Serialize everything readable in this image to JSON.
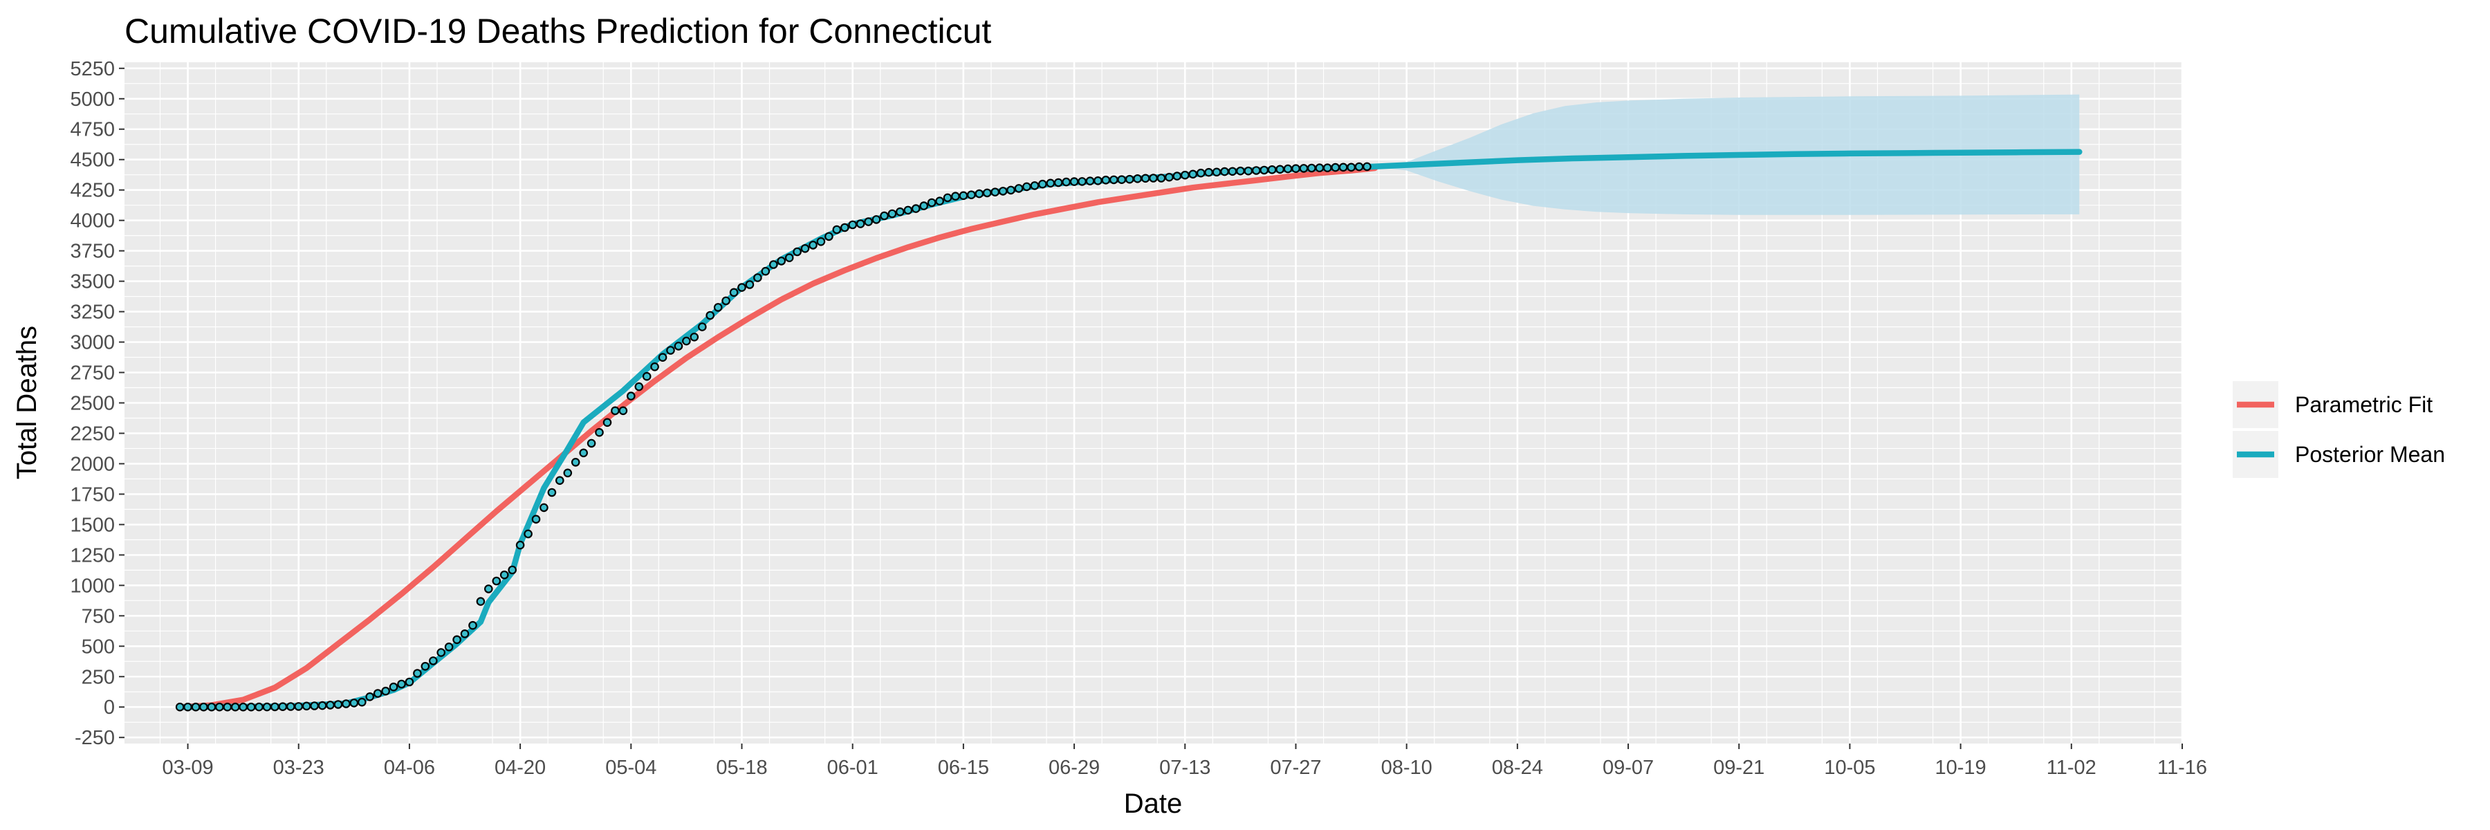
{
  "chart_data": {
    "type": "line",
    "title": "Cumulative COVID-19 Deaths Prediction for Connecticut",
    "xlabel": "Date",
    "ylabel": "Total Deaths",
    "x_axis": {
      "type": "date",
      "year": 2020,
      "range": [
        "2020-03-01",
        "2020-11-16"
      ],
      "ticks": [
        "03-09",
        "03-23",
        "04-06",
        "04-20",
        "05-04",
        "05-18",
        "06-01",
        "06-15",
        "06-29",
        "07-13",
        "07-27",
        "08-10",
        "08-24",
        "09-07",
        "09-21",
        "10-05",
        "10-19",
        "11-02",
        "11-16"
      ]
    },
    "y_axis": {
      "range": [
        -300,
        5300
      ],
      "ticks": [
        -250,
        0,
        250,
        500,
        750,
        1000,
        1250,
        1500,
        1750,
        2000,
        2250,
        2500,
        2750,
        3000,
        3250,
        3500,
        3750,
        4000,
        4250,
        4500,
        4750,
        5000,
        5250
      ]
    },
    "grid": true,
    "legend": {
      "placement": "right",
      "entries": [
        "Parametric Fit",
        "Posterior Mean"
      ]
    },
    "colors": {
      "parametric_fit": "#F2635F",
      "posterior_mean": "#1AABBE",
      "band": "#BCDDEB",
      "points_fill": "#3BBDCB",
      "points_stroke": "#000000",
      "panel": "#EBEBEB",
      "grid": "#FFFFFF"
    },
    "series": [
      {
        "name": "Parametric Fit",
        "points": [
          [
            "2020-03-08",
            0
          ],
          [
            "2020-03-12",
            15
          ],
          [
            "2020-03-16",
            60
          ],
          [
            "2020-03-20",
            160
          ],
          [
            "2020-03-24",
            320
          ],
          [
            "2020-03-28",
            520
          ],
          [
            "2020-04-01",
            720
          ],
          [
            "2020-04-05",
            930
          ],
          [
            "2020-04-09",
            1150
          ],
          [
            "2020-04-13",
            1380
          ],
          [
            "2020-04-17",
            1610
          ],
          [
            "2020-04-21",
            1830
          ],
          [
            "2020-04-25",
            2050
          ],
          [
            "2020-04-29",
            2270
          ],
          [
            "2020-05-03",
            2480
          ],
          [
            "2020-05-07",
            2680
          ],
          [
            "2020-05-11",
            2870
          ],
          [
            "2020-05-15",
            3040
          ],
          [
            "2020-05-19",
            3200
          ],
          [
            "2020-05-23",
            3350
          ],
          [
            "2020-05-27",
            3480
          ],
          [
            "2020-05-31",
            3590
          ],
          [
            "2020-06-04",
            3690
          ],
          [
            "2020-06-08",
            3780
          ],
          [
            "2020-06-12",
            3860
          ],
          [
            "2020-06-16",
            3930
          ],
          [
            "2020-06-20",
            3990
          ],
          [
            "2020-06-24",
            4050
          ],
          [
            "2020-06-28",
            4100
          ],
          [
            "2020-07-02",
            4150
          ],
          [
            "2020-07-06",
            4190
          ],
          [
            "2020-07-10",
            4230
          ],
          [
            "2020-07-14",
            4270
          ],
          [
            "2020-07-18",
            4300
          ],
          [
            "2020-07-22",
            4330
          ],
          [
            "2020-07-26",
            4360
          ],
          [
            "2020-07-30",
            4390
          ],
          [
            "2020-08-03",
            4410
          ],
          [
            "2020-08-06",
            4430
          ]
        ]
      },
      {
        "name": "Posterior Mean",
        "points": [
          [
            "2020-03-08",
            0
          ],
          [
            "2020-03-21",
            5
          ],
          [
            "2020-03-29",
            30
          ],
          [
            "2020-04-01",
            80
          ],
          [
            "2020-04-04",
            140
          ],
          [
            "2020-04-06",
            200
          ],
          [
            "2020-04-09",
            360
          ],
          [
            "2020-04-12",
            520
          ],
          [
            "2020-04-15",
            700
          ],
          [
            "2020-04-16",
            860
          ],
          [
            "2020-04-19",
            1110
          ],
          [
            "2020-04-20",
            1340
          ],
          [
            "2020-04-23",
            1800
          ],
          [
            "2020-04-26",
            2120
          ],
          [
            "2020-04-28",
            2340
          ],
          [
            "2020-05-03",
            2600
          ],
          [
            "2020-05-08",
            2900
          ],
          [
            "2020-05-13",
            3150
          ],
          [
            "2020-05-18",
            3450
          ],
          [
            "2020-05-23",
            3680
          ],
          [
            "2020-05-28",
            3850
          ],
          [
            "2020-06-01",
            3970
          ],
          [
            "2020-06-06",
            4040
          ],
          [
            "2020-06-11",
            4130
          ],
          [
            "2020-06-16",
            4210
          ],
          [
            "2020-06-21",
            4250
          ],
          [
            "2020-06-26",
            4300
          ],
          [
            "2020-07-01",
            4320
          ],
          [
            "2020-07-06",
            4340
          ],
          [
            "2020-07-11",
            4360
          ],
          [
            "2020-07-16",
            4390
          ],
          [
            "2020-07-21",
            4410
          ],
          [
            "2020-07-26",
            4420
          ],
          [
            "2020-07-31",
            4430
          ],
          [
            "2020-08-05",
            4440
          ],
          [
            "2020-08-10",
            4455
          ],
          [
            "2020-08-17",
            4475
          ],
          [
            "2020-08-24",
            4495
          ],
          [
            "2020-08-31",
            4510
          ],
          [
            "2020-09-07",
            4520
          ],
          [
            "2020-09-14",
            4530
          ],
          [
            "2020-09-21",
            4538
          ],
          [
            "2020-09-28",
            4545
          ],
          [
            "2020-10-05",
            4550
          ],
          [
            "2020-10-12",
            4553
          ],
          [
            "2020-10-19",
            4557
          ],
          [
            "2020-10-26",
            4560
          ],
          [
            "2020-11-03",
            4563
          ]
        ]
      }
    ],
    "credible_band": [
      [
        "2020-08-06",
        4440,
        4440
      ],
      [
        "2020-08-10",
        4410,
        4480
      ],
      [
        "2020-08-14",
        4320,
        4580
      ],
      [
        "2020-08-18",
        4240,
        4680
      ],
      [
        "2020-08-22",
        4170,
        4790
      ],
      [
        "2020-08-26",
        4120,
        4880
      ],
      [
        "2020-08-30",
        4090,
        4940
      ],
      [
        "2020-09-03",
        4070,
        4970
      ],
      [
        "2020-09-07",
        4060,
        4985
      ],
      [
        "2020-09-14",
        4050,
        5000
      ],
      [
        "2020-09-21",
        4045,
        5010
      ],
      [
        "2020-10-05",
        4045,
        5020
      ],
      [
        "2020-10-19",
        4048,
        5025
      ],
      [
        "2020-11-03",
        4050,
        5035
      ]
    ],
    "observed": [
      [
        "2020-03-08",
        0
      ],
      [
        "2020-03-09",
        0
      ],
      [
        "2020-03-10",
        0
      ],
      [
        "2020-03-11",
        0
      ],
      [
        "2020-03-12",
        0
      ],
      [
        "2020-03-13",
        0
      ],
      [
        "2020-03-14",
        0
      ],
      [
        "2020-03-15",
        0
      ],
      [
        "2020-03-16",
        0
      ],
      [
        "2020-03-17",
        0
      ],
      [
        "2020-03-18",
        1
      ],
      [
        "2020-03-19",
        1
      ],
      [
        "2020-03-20",
        2
      ],
      [
        "2020-03-21",
        3
      ],
      [
        "2020-03-22",
        4
      ],
      [
        "2020-03-23",
        5
      ],
      [
        "2020-03-24",
        8
      ],
      [
        "2020-03-25",
        10
      ],
      [
        "2020-03-26",
        12
      ],
      [
        "2020-03-27",
        16
      ],
      [
        "2020-03-28",
        21
      ],
      [
        "2020-03-29",
        27
      ],
      [
        "2020-03-30",
        33
      ],
      [
        "2020-03-31",
        40
      ],
      [
        "2020-04-01",
        85
      ],
      [
        "2020-04-02",
        112
      ],
      [
        "2020-04-03",
        131
      ],
      [
        "2020-04-04",
        165
      ],
      [
        "2020-04-05",
        189
      ],
      [
        "2020-04-06",
        206
      ],
      [
        "2020-04-07",
        277
      ],
      [
        "2020-04-08",
        335
      ],
      [
        "2020-04-09",
        380
      ],
      [
        "2020-04-10",
        448
      ],
      [
        "2020-04-11",
        494
      ],
      [
        "2020-04-12",
        554
      ],
      [
        "2020-04-13",
        602
      ],
      [
        "2020-04-14",
        671
      ],
      [
        "2020-04-15",
        868
      ],
      [
        "2020-04-16",
        971
      ],
      [
        "2020-04-17",
        1036
      ],
      [
        "2020-04-18",
        1086
      ],
      [
        "2020-04-19",
        1127
      ],
      [
        "2020-04-20",
        1331
      ],
      [
        "2020-04-21",
        1423
      ],
      [
        "2020-04-22",
        1544
      ],
      [
        "2020-04-23",
        1639
      ],
      [
        "2020-04-24",
        1764
      ],
      [
        "2020-04-25",
        1862
      ],
      [
        "2020-04-26",
        1924
      ],
      [
        "2020-04-27",
        2012
      ],
      [
        "2020-04-28",
        2089
      ],
      [
        "2020-04-29",
        2168
      ],
      [
        "2020-04-30",
        2257
      ],
      [
        "2020-05-01",
        2339
      ],
      [
        "2020-05-02",
        2436
      ],
      [
        "2020-05-03",
        2436
      ],
      [
        "2020-05-04",
        2556
      ],
      [
        "2020-05-05",
        2633
      ],
      [
        "2020-05-06",
        2718
      ],
      [
        "2020-05-07",
        2797
      ],
      [
        "2020-05-08",
        2874
      ],
      [
        "2020-05-09",
        2932
      ],
      [
        "2020-05-10",
        2967
      ],
      [
        "2020-05-11",
        3008
      ],
      [
        "2020-05-12",
        3041
      ],
      [
        "2020-05-13",
        3125
      ],
      [
        "2020-05-14",
        3219
      ],
      [
        "2020-05-15",
        3285
      ],
      [
        "2020-05-16",
        3339
      ],
      [
        "2020-05-17",
        3408
      ],
      [
        "2020-05-18",
        3449
      ],
      [
        "2020-05-19",
        3472
      ],
      [
        "2020-05-20",
        3529
      ],
      [
        "2020-05-21",
        3582
      ],
      [
        "2020-05-22",
        3637
      ],
      [
        "2020-05-23",
        3666
      ],
      [
        "2020-05-24",
        3693
      ],
      [
        "2020-05-25",
        3742
      ],
      [
        "2020-05-26",
        3769
      ],
      [
        "2020-05-27",
        3797
      ],
      [
        "2020-05-28",
        3826
      ],
      [
        "2020-05-29",
        3868
      ],
      [
        "2020-05-30",
        3924
      ],
      [
        "2020-05-31",
        3941
      ],
      [
        "2020-06-01",
        3964
      ],
      [
        "2020-06-02",
        3972
      ],
      [
        "2020-06-03",
        3989
      ],
      [
        "2020-06-04",
        4007
      ],
      [
        "2020-06-05",
        4038
      ],
      [
        "2020-06-06",
        4055
      ],
      [
        "2020-06-07",
        4071
      ],
      [
        "2020-06-08",
        4084
      ],
      [
        "2020-06-09",
        4097
      ],
      [
        "2020-06-10",
        4120
      ],
      [
        "2020-06-11",
        4146
      ],
      [
        "2020-06-12",
        4159
      ],
      [
        "2020-06-13",
        4186
      ],
      [
        "2020-06-14",
        4199
      ],
      [
        "2020-06-15",
        4204
      ],
      [
        "2020-06-16",
        4210
      ],
      [
        "2020-06-17",
        4219
      ],
      [
        "2020-06-18",
        4226
      ],
      [
        "2020-06-19",
        4233
      ],
      [
        "2020-06-20",
        4240
      ],
      [
        "2020-06-21",
        4249
      ],
      [
        "2020-06-22",
        4263
      ],
      [
        "2020-06-23",
        4277
      ],
      [
        "2020-06-24",
        4286
      ],
      [
        "2020-06-25",
        4298
      ],
      [
        "2020-06-26",
        4306
      ],
      [
        "2020-06-27",
        4311
      ],
      [
        "2020-06-28",
        4316
      ],
      [
        "2020-06-29",
        4319
      ],
      [
        "2020-06-30",
        4320
      ],
      [
        "2020-07-01",
        4324
      ],
      [
        "2020-07-02",
        4326
      ],
      [
        "2020-07-03",
        4332
      ],
      [
        "2020-07-04",
        4334
      ],
      [
        "2020-07-05",
        4335
      ],
      [
        "2020-07-06",
        4338
      ],
      [
        "2020-07-07",
        4343
      ],
      [
        "2020-07-08",
        4346
      ],
      [
        "2020-07-09",
        4348
      ],
      [
        "2020-07-10",
        4348
      ],
      [
        "2020-07-11",
        4355
      ],
      [
        "2020-07-12",
        4364
      ],
      [
        "2020-07-13",
        4372
      ],
      [
        "2020-07-14",
        4380
      ],
      [
        "2020-07-15",
        4389
      ],
      [
        "2020-07-16",
        4395
      ],
      [
        "2020-07-17",
        4397
      ],
      [
        "2020-07-18",
        4401
      ],
      [
        "2020-07-19",
        4403
      ],
      [
        "2020-07-20",
        4406
      ],
      [
        "2020-07-21",
        4406
      ],
      [
        "2020-07-22",
        4410
      ],
      [
        "2020-07-23",
        4413
      ],
      [
        "2020-07-24",
        4417
      ],
      [
        "2020-07-25",
        4420
      ],
      [
        "2020-07-26",
        4424
      ],
      [
        "2020-07-27",
        4426
      ],
      [
        "2020-07-28",
        4428
      ],
      [
        "2020-07-29",
        4430
      ],
      [
        "2020-07-30",
        4432
      ],
      [
        "2020-07-31",
        4432
      ],
      [
        "2020-08-01",
        4435
      ],
      [
        "2020-08-02",
        4437
      ],
      [
        "2020-08-03",
        4437
      ],
      [
        "2020-08-04",
        4441
      ],
      [
        "2020-08-05",
        4442
      ]
    ]
  }
}
